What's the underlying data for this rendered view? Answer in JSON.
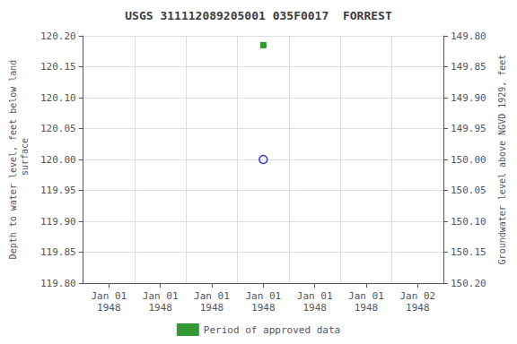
{
  "chart_data": {
    "type": "scatter",
    "title": "USGS 311112089205001 035F0017  FORREST",
    "ylabel": "Depth to water level, feet below land\n surface",
    "y2label": "Groundwater level above NGVD 1929, feet",
    "categories": [
      "Jan 01\n1948",
      "Jan 01\n1948",
      "Jan 01\n1948",
      "Jan 01\n1948",
      "Jan 01\n1948",
      "Jan 01\n1948",
      "Jan 02\n1948"
    ],
    "series": [
      {
        "color": "#0000cc",
        "marker": "open_circle",
        "values": [
          null,
          null,
          null,
          120.0,
          null,
          null,
          null
        ]
      },
      {
        "name": "Period of approved data",
        "color": "#008000",
        "marker": "square",
        "values": [
          null,
          null,
          null,
          120.185,
          null,
          null,
          null
        ]
      }
    ],
    "ylim": [
      119.8,
      120.2
    ],
    "yticks": [
      {
        "value": 119.8,
        "label": "119.80"
      },
      119.85,
      {
        "value": 119.9,
        "label": "119.90"
      },
      119.95,
      {
        "value": 120,
        "label": "120.00"
      },
      120.05,
      {
        "value": 120.1,
        "label": "120.10"
      },
      120.15,
      {
        "value": 120.2,
        "label": "120.20"
      }
    ],
    "y2lim": [
      150.2,
      149.8
    ],
    "y2ticks": [
      {
        "value": 150.2,
        "label": "150.20"
      },
      150.15,
      {
        "value": 150.1,
        "label": "150.10"
      },
      150.05,
      {
        "value": 150,
        "label": "150.00"
      },
      149.95,
      {
        "value": 149.9,
        "label": "149.90"
      },
      149.85,
      {
        "value": 149.8,
        "label": "149.80"
      }
    ],
    "grid": true,
    "legend": "bottom"
  }
}
